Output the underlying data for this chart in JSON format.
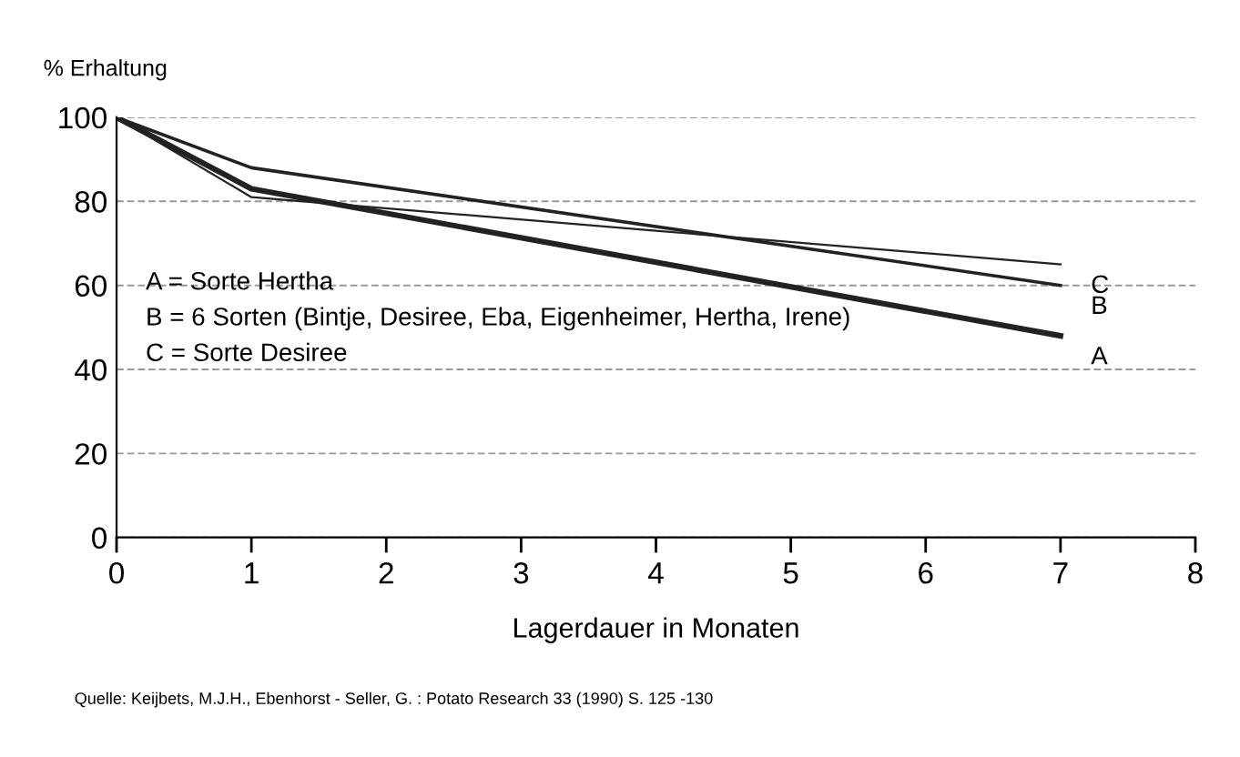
{
  "chart_data": {
    "type": "line",
    "ylabel": "% Erhaltung",
    "xlabel": "Lagerdauer in Monaten",
    "x": [
      0,
      1,
      7
    ],
    "series": [
      {
        "name": "A",
        "color": "#222222",
        "values": [
          100,
          83,
          48
        ]
      },
      {
        "name": "B",
        "color": "#222222",
        "values": [
          100,
          88,
          60
        ]
      },
      {
        "name": "C",
        "color": "#222222",
        "values": [
          100,
          81,
          65
        ]
      }
    ],
    "xlim": [
      0,
      8
    ],
    "xticks": [
      0,
      1,
      2,
      3,
      4,
      5,
      6,
      7,
      8
    ],
    "ylim": [
      0,
      100
    ],
    "yticks": [
      0,
      20,
      40,
      60,
      80,
      100
    ],
    "grid": "y",
    "legend": false,
    "marker": "none",
    "line_style": "solid",
    "annotations": [
      "A = Sorte Hertha",
      "B = 6 Sorten (Bintje, Desiree, Eba, Eigenheimer, Hertha, Irene)",
      "C = Sorte Desiree",
      "Quelle: Keijbets, M.J.H., Ebenhorst - Seller, G. : Potato Research 33 (1990) S. 125 -130"
    ]
  }
}
